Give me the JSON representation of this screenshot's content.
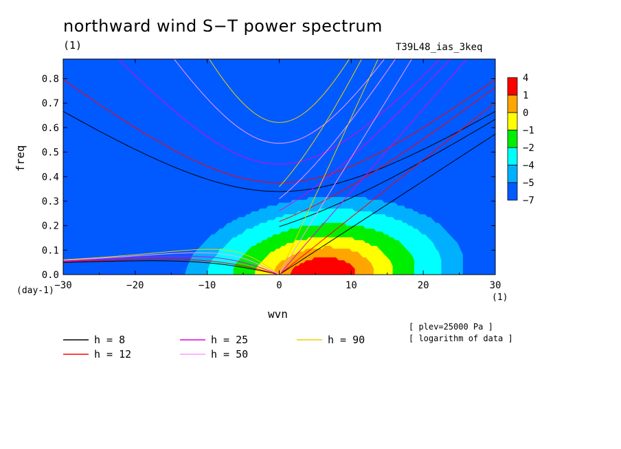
{
  "chart_data": {
    "type": "contour",
    "title": "northward wind S−T power spectrum",
    "subtitle_left": "(1)",
    "subtitle_right": "T39L48_ias_3keq",
    "xlabel": "wvn",
    "ylabel": "freq",
    "x_unit": "(1)",
    "y_unit": "(day-1)",
    "xlim": [
      -30,
      30
    ],
    "ylim": [
      0,
      0.88
    ],
    "x_ticks": [
      -30,
      -20,
      -10,
      0,
      10,
      20,
      30
    ],
    "x_tick_labels": [
      "−30",
      "−20",
      "−10",
      "0",
      "10",
      "20",
      "30"
    ],
    "y_ticks": [
      0.0,
      0.1,
      0.2,
      0.3,
      0.4,
      0.5,
      0.6,
      0.7,
      0.8
    ],
    "y_tick_labels": [
      "0.0",
      "0.1",
      "0.2",
      "0.3",
      "0.4",
      "0.5",
      "0.6",
      "0.7",
      "0.8"
    ],
    "colorbar": {
      "labels": [
        "4",
        "1",
        "0",
        "−1",
        "−2",
        "−4",
        "−5",
        "−7"
      ],
      "colors": [
        "#ff0000",
        "#ffa500",
        "#ffff00",
        "#00ee00",
        "#00ffff",
        "#00b0ff",
        "#005aff"
      ]
    },
    "notes": [
      "[ plev=25000 Pa ]",
      "[ logarithm of data ]"
    ],
    "dispersion_legend": [
      {
        "label": "h =  8",
        "color": "#000000",
        "h": 8
      },
      {
        "label": "h = 12",
        "color": "#ff0000",
        "h": 12
      },
      {
        "label": "h = 25",
        "color": "#e000e0",
        "h": 25
      },
      {
        "label": "h = 50",
        "color": "#ff99ff",
        "h": 50
      },
      {
        "label": "h = 90",
        "color": "#f0d000",
        "h": 90
      }
    ],
    "grid": false
  }
}
